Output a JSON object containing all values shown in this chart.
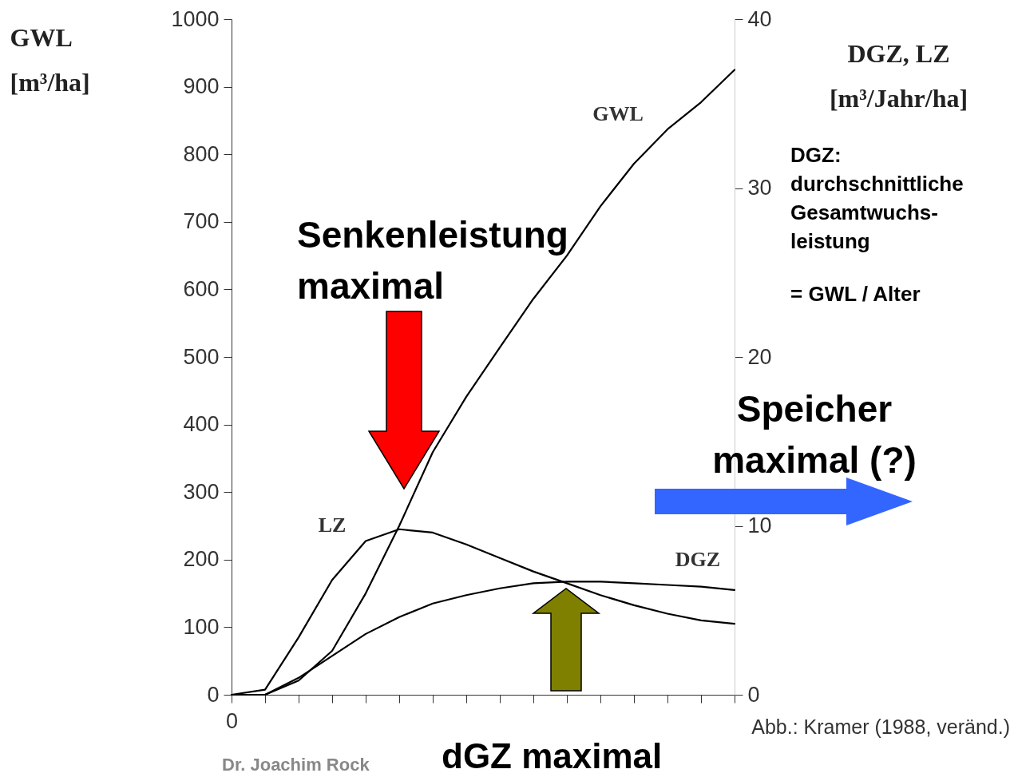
{
  "chart_data": {
    "type": "line",
    "categories": [
      "0",
      null,
      null,
      null,
      null,
      null,
      null,
      null,
      null,
      null,
      null,
      null,
      null,
      null,
      null,
      null
    ],
    "series": [
      {
        "name": "GWL",
        "color": "#000000",
        "axis": "y",
        "values": [
          0,
          0,
          21,
          65,
          150,
          250,
          359,
          441,
          514,
          586,
          650,
          723,
          786,
          837,
          877,
          925
        ]
      },
      {
        "name": "LZ",
        "color": "#000000",
        "axis": "y2",
        "values": [
          0,
          0.3,
          3.4,
          6.8,
          9.1,
          9.8,
          9.6,
          8.9,
          8.1,
          7.3,
          6.6,
          5.9,
          5.3,
          4.8,
          4.4,
          4.2
        ]
      },
      {
        "name": "DGZ",
        "color": "#000000",
        "axis": "y2",
        "values": [
          0,
          0,
          1.0,
          2.3,
          3.6,
          4.6,
          5.4,
          5.9,
          6.3,
          6.6,
          6.7,
          6.7,
          6.6,
          6.5,
          6.4,
          6.2
        ]
      }
    ],
    "ylabel": "GWL [m³/ha]",
    "y2label": "DGZ, LZ [m³/Jahr/ha]",
    "ylim": [
      0,
      1000
    ],
    "yticks": [
      0,
      100,
      200,
      300,
      400,
      500,
      600,
      700,
      800,
      900,
      {
        "value": 1000,
        "label": "1000"
      }
    ],
    "y2lim": [
      0,
      40
    ],
    "y2ticks": [
      0,
      10,
      20,
      30,
      40
    ],
    "grid": false,
    "legend": false,
    "marker": "none",
    "line_style": "solid",
    "annotations": [
      "Senkenleistung maximal",
      "Speicher maximal (?)",
      "dGZ maximal",
      "DGZ: durchschnittliche Gesamtwuchs-leistung",
      "= GWL / Alter",
      "Abb.: Kramer (1988, veränd.)",
      "Dr. Joachim Rock"
    ]
  }
}
